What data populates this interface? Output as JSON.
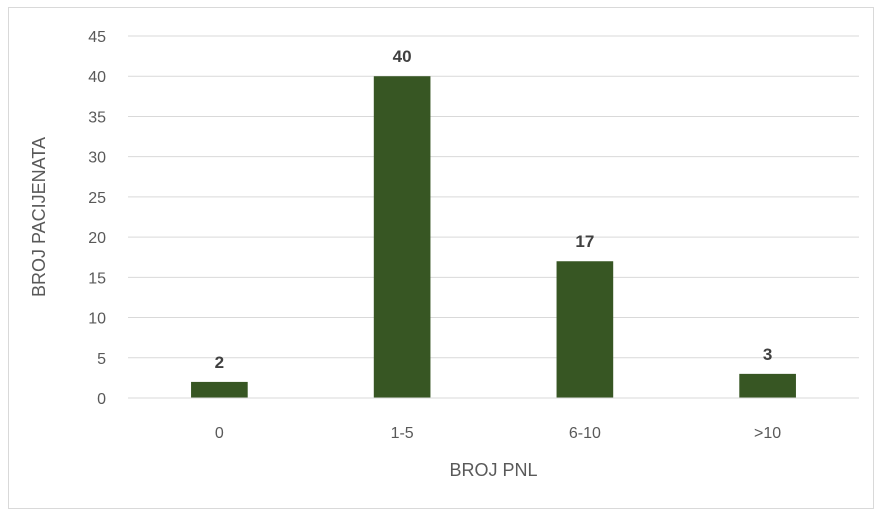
{
  "chart_data": {
    "type": "bar",
    "categories": [
      "0",
      "1-5",
      "6-10",
      ">10"
    ],
    "values": [
      2,
      40,
      17,
      3
    ],
    "title": "",
    "xlabel": "BROJ PNL",
    "ylabel": "BROJ PACIJENATA",
    "ylim": [
      0,
      45
    ],
    "yticks": [
      0,
      5,
      10,
      15,
      20,
      25,
      30,
      35,
      40,
      45
    ],
    "grid": true,
    "legend": "none",
    "data_labels": true,
    "bar_color": "#375623",
    "grid_color": "#d9d9d9",
    "text_color": "#595959"
  }
}
